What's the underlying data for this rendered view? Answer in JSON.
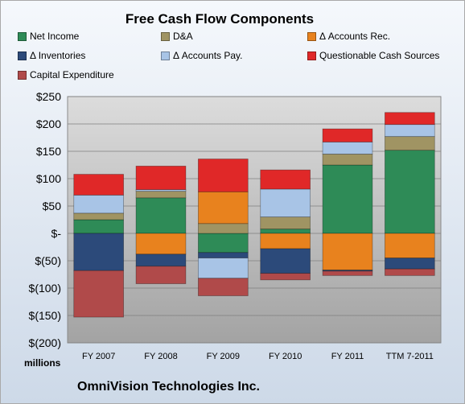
{
  "chart_data": {
    "type": "bar",
    "stacked": true,
    "title": "Free Cash Flow Components",
    "xlabel": "",
    "ylabel": "",
    "units_label": "millions",
    "ylim": [
      -200,
      250
    ],
    "yticks": [
      250,
      200,
      150,
      100,
      50,
      0,
      -50,
      -100,
      -150,
      -200
    ],
    "ytick_labels": [
      "$250",
      "$200",
      "$150",
      "$100",
      "$50",
      "$-",
      "$(50)",
      "$(100)",
      "$(150)",
      "$(200)"
    ],
    "categories": [
      "FY 2007",
      "FY 2008",
      "FY 2009",
      "FY 2010",
      "FY 2011",
      "TTM 7-2011"
    ],
    "series": [
      {
        "name": "Net Income",
        "color": "#2e8b57",
        "values": [
          25,
          65,
          -35,
          8,
          125,
          152
        ]
      },
      {
        "name": "D&A",
        "color": "#a09463",
        "values": [
          12,
          12,
          18,
          22,
          20,
          25
        ]
      },
      {
        "name": "Δ Accounts Rec.",
        "color": "#e8821e",
        "values": [
          0,
          -38,
          58,
          -28,
          -67,
          -45
        ]
      },
      {
        "name": "Δ Inventories",
        "color": "#2c4a7a",
        "values": [
          -68,
          -22,
          -10,
          -45,
          -2,
          -20
        ]
      },
      {
        "name": "Δ Accounts Pay.",
        "color": "#a8c4e6",
        "values": [
          33,
          3,
          -37,
          51,
          22,
          22
        ]
      },
      {
        "name": "Questionable Cash Sources",
        "color": "#e02828",
        "values": [
          38,
          43,
          60,
          35,
          24,
          22
        ]
      },
      {
        "name": "Capital Expenditure",
        "color": "#b04a4a",
        "values": [
          -85,
          -32,
          -32,
          -12,
          -8,
          -12
        ]
      }
    ],
    "grid": true,
    "legend_position": "top"
  },
  "footer": {
    "company": "OmniVision Technologies Inc."
  }
}
